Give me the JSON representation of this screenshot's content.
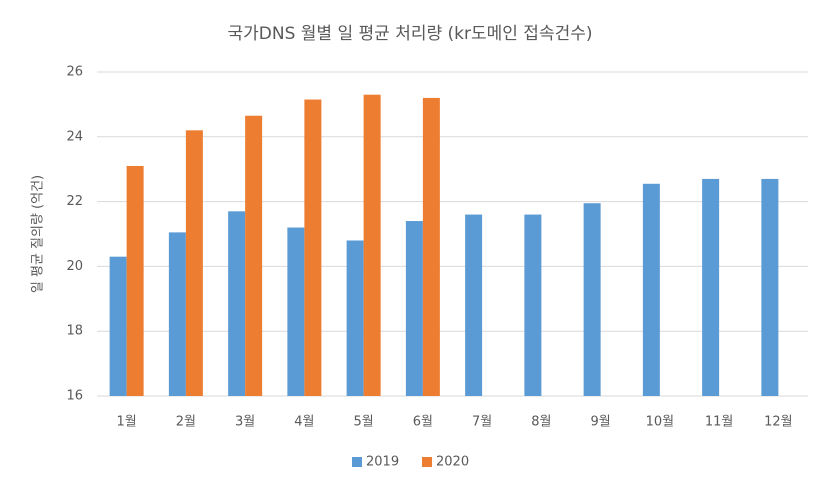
{
  "chart_data": {
    "type": "bar",
    "title": "국가DNS 월별 일 평균 처리량 (kr도메인 접속건수)",
    "y_label": "일 평균 질의량 (억건)",
    "categories": [
      "1월",
      "2월",
      "3월",
      "4월",
      "5월",
      "6월",
      "7월",
      "8월",
      "9월",
      "10월",
      "11월",
      "12월"
    ],
    "series": [
      {
        "name": "2019",
        "color": "#5b9bd5",
        "values": [
          20.3,
          21.05,
          21.7,
          21.2,
          20.8,
          21.4,
          21.6,
          21.6,
          21.95,
          22.55,
          22.7,
          22.7
        ]
      },
      {
        "name": "2020",
        "color": "#ed7d31",
        "values": [
          23.1,
          24.2,
          24.65,
          25.15,
          25.3,
          25.2,
          null,
          null,
          null,
          null,
          null,
          null
        ]
      }
    ],
    "ylim": [
      16,
      26
    ],
    "yticks": [
      16,
      18,
      20,
      22,
      24,
      26
    ],
    "grid": true,
    "legend": "bottom"
  }
}
